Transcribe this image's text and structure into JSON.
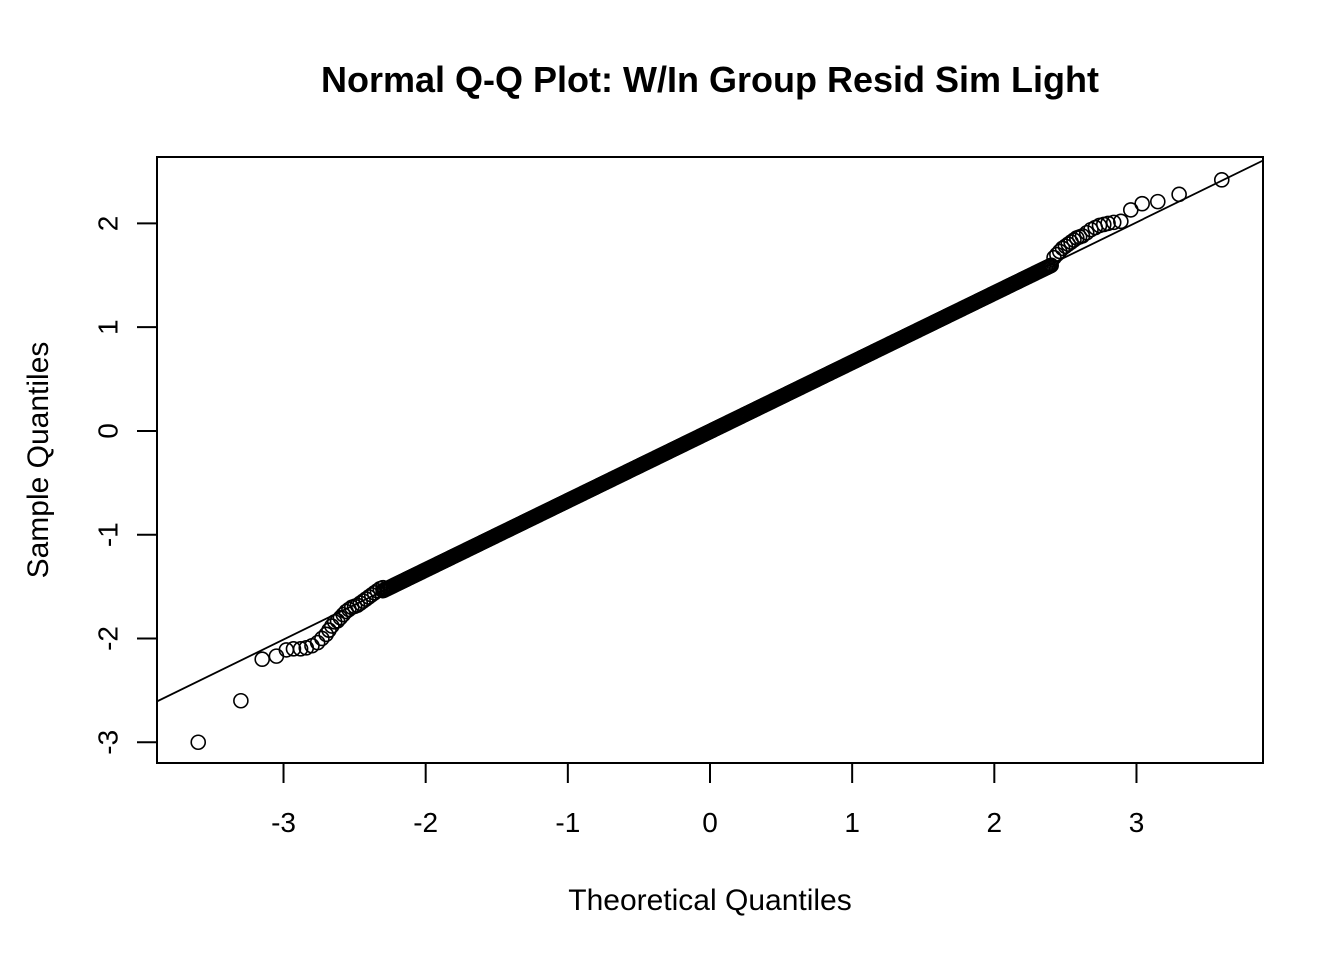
{
  "chart_data": {
    "type": "scatter",
    "title": "Normal Q-Q Plot: W/In Group Resid Sim Light",
    "xlabel": "Theoretical Quantiles",
    "ylabel": "Sample Quantiles",
    "xlim": [
      -3.89,
      3.89
    ],
    "ylim": [
      -3.2,
      2.64
    ],
    "x_ticks": [
      -3,
      -2,
      -1,
      0,
      1,
      2,
      3
    ],
    "x_tick_labels": [
      "-3",
      "-2",
      "-1",
      "0",
      "1",
      "2",
      "3"
    ],
    "y_ticks": [
      -3,
      -2,
      -1,
      0,
      1,
      2
    ],
    "y_tick_labels": [
      "-3",
      "-2",
      "-1",
      "0",
      "1",
      "2"
    ],
    "grid": false,
    "legend": "none",
    "reference_line": {
      "intercept": 0.0,
      "slope": 0.67
    },
    "tail_points": {
      "x": [
        -3.6,
        -3.3,
        -3.15,
        -3.05,
        -2.98,
        -2.93,
        -2.88,
        -2.84,
        -2.8,
        -2.76,
        -2.73,
        -2.7,
        -2.68,
        -2.66,
        -2.64,
        -2.62,
        -2.6,
        -2.58,
        -2.56,
        -2.54,
        -2.52,
        -2.5,
        -2.48,
        -2.46,
        -2.44,
        -2.42,
        -2.4,
        -2.38,
        -2.36,
        -2.34,
        -2.32,
        -2.3,
        2.42,
        2.44,
        2.46,
        2.48,
        2.5,
        2.52,
        2.54,
        2.56,
        2.58,
        2.6,
        2.62,
        2.65,
        2.68,
        2.71,
        2.74,
        2.77,
        2.8,
        2.84,
        2.89,
        2.96,
        3.04,
        3.15,
        3.3,
        3.6
      ],
      "y": [
        -3.0,
        -2.6,
        -2.2,
        -2.17,
        -2.11,
        -2.1,
        -2.1,
        -2.09,
        -2.07,
        -2.04,
        -2.0,
        -1.96,
        -1.92,
        -1.88,
        -1.84,
        -1.83,
        -1.8,
        -1.77,
        -1.74,
        -1.72,
        -1.7,
        -1.69,
        -1.68,
        -1.66,
        -1.64,
        -1.62,
        -1.6,
        -1.58,
        -1.56,
        -1.54,
        -1.52,
        -1.51,
        1.67,
        1.7,
        1.73,
        1.76,
        1.78,
        1.8,
        1.82,
        1.84,
        1.86,
        1.87,
        1.88,
        1.91,
        1.94,
        1.96,
        1.98,
        1.99,
        2.0,
        2.01,
        2.02,
        2.13,
        2.19,
        2.21,
        2.28,
        2.42
      ]
    },
    "body_points": {
      "x_start": -2.3,
      "x_end": 2.4,
      "count": 470,
      "intercept": -0.005,
      "slope": 0.667
    }
  }
}
